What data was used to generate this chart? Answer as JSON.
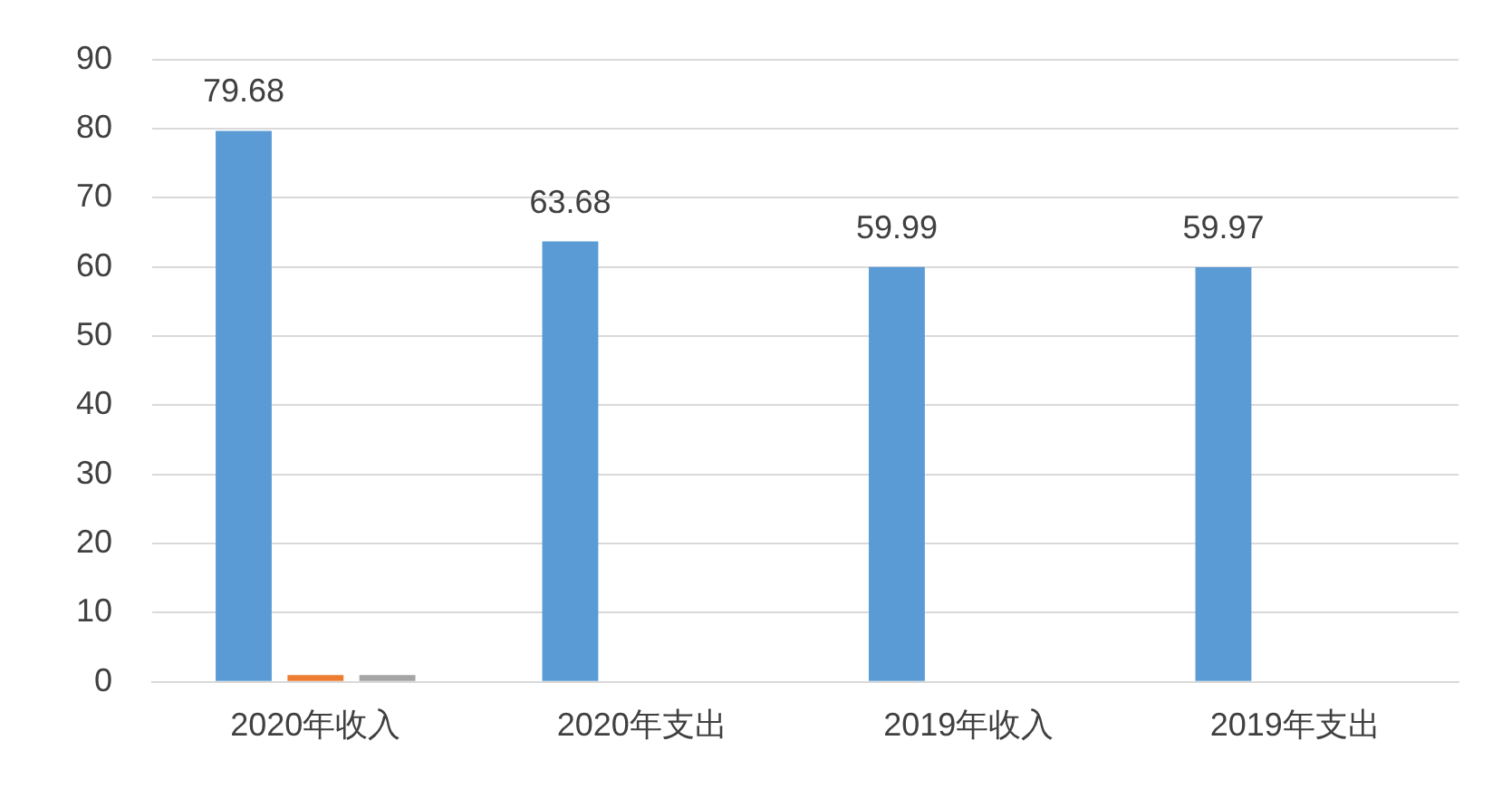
{
  "chart_data": {
    "type": "bar",
    "categories": [
      "2020年收入",
      "2020年支出",
      "2019年收入",
      "2019年支出"
    ],
    "series": [
      {
        "color": "#5b9bd5",
        "values": [
          79.68,
          63.68,
          59.99,
          59.97
        ],
        "value_labels": [
          "79.68",
          "63.68",
          "59.99",
          "59.97"
        ]
      },
      {
        "color": "#ed7d31",
        "values": [
          1,
          null,
          null,
          null
        ]
      },
      {
        "color": "#a5a5a5",
        "values": [
          1,
          null,
          null,
          null
        ]
      }
    ],
    "ylim": [
      0,
      90
    ],
    "yticks": [
      0,
      10,
      20,
      30,
      40,
      50,
      60,
      70,
      80,
      90
    ],
    "grid": "y",
    "legend": false
  }
}
